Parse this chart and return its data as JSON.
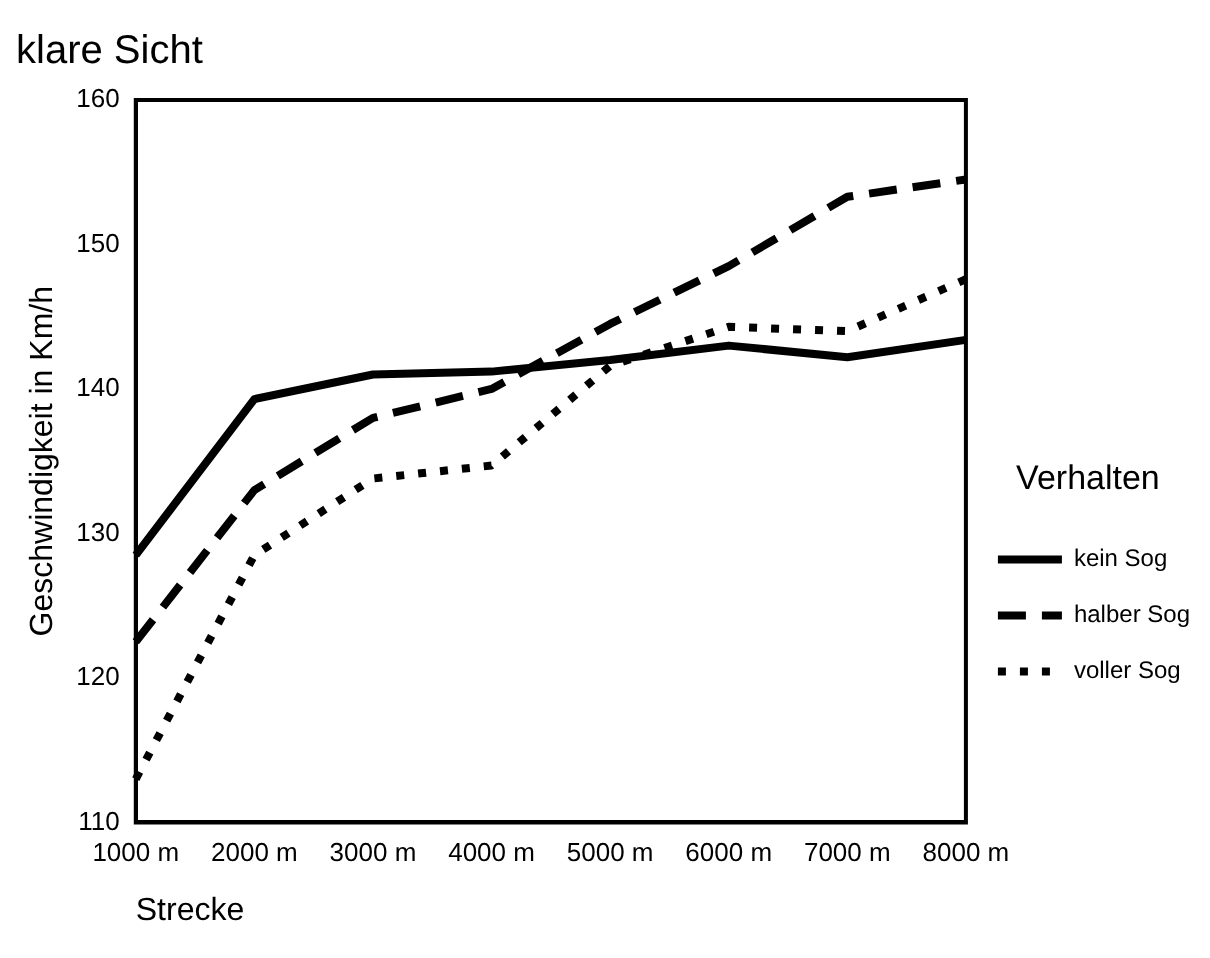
{
  "chart_data": {
    "type": "line",
    "title": "klare Sicht",
    "xlabel": "Strecke",
    "ylabel": "Geschwindigkeit in Km/h",
    "legend_title": "Verhalten",
    "legend": "right",
    "grid": false,
    "marker": "none",
    "categories": [
      "1000 m",
      "2000 m",
      "3000 m",
      "4000 m",
      "5000 m",
      "6000 m",
      "7000 m",
      "8000 m"
    ],
    "ylim": [
      110,
      160
    ],
    "yticks": [
      110,
      120,
      130,
      140,
      150,
      160
    ],
    "series": [
      {
        "name": "kein Sog",
        "color": "#000000",
        "line_style": "solid",
        "values": [
          128.5,
          139.3,
          141,
          141.2,
          142,
          143,
          142.2,
          143.4
        ]
      },
      {
        "name": "halber Sog",
        "color": "#000000",
        "line_style": "dashed",
        "values": [
          122.5,
          133,
          138,
          140,
          144.5,
          148.5,
          153.3,
          154.5
        ]
      },
      {
        "name": "voller Sog",
        "color": "#000000",
        "line_style": "dotted",
        "values": [
          113,
          128.5,
          133.8,
          134.7,
          141.6,
          144.3,
          144,
          147.6
        ]
      }
    ]
  }
}
